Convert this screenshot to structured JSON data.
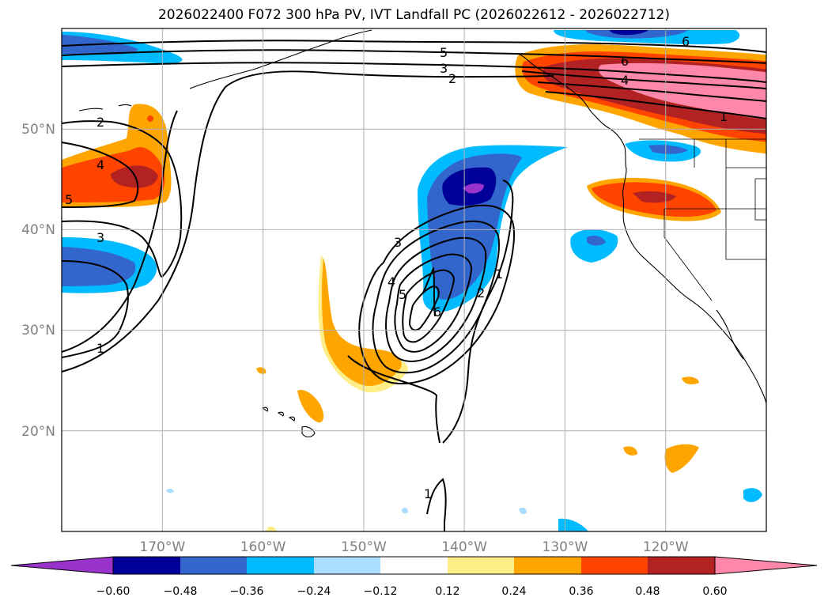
{
  "title": "2026022400 F072 300 hPa PV, IVT Landfall PC (2026022612 - 2026022712)",
  "map": {
    "lon_range": [
      -180,
      -110
    ],
    "lat_range": [
      10,
      60
    ],
    "lat_ticks": [
      "50°N",
      "40°N",
      "30°N",
      "20°N"
    ],
    "lon_ticks": [
      "170°W",
      "160°W",
      "150°W",
      "140°W",
      "130°W",
      "120°W"
    ],
    "grid": true
  },
  "colorbar": {
    "levels": [
      "−0.60",
      "−0.48",
      "−0.36",
      "−0.24",
      "−0.12",
      "0.12",
      "0.24",
      "0.36",
      "0.48",
      "0.60"
    ],
    "colors": [
      "#9933cc",
      "#000099",
      "#3366cc",
      "#00bbff",
      "#aaddff",
      "#ffffff",
      "#ffee88",
      "#ffa500",
      "#ff4400",
      "#b22222",
      "#ff88aa"
    ],
    "extend": "both"
  },
  "contour_labels": [
    "5",
    "3",
    "2",
    "6",
    "6",
    "4",
    "1",
    "2",
    "4",
    "5",
    "3",
    "3",
    "5",
    "4",
    "6",
    "2",
    "1",
    "1",
    "1"
  ]
}
